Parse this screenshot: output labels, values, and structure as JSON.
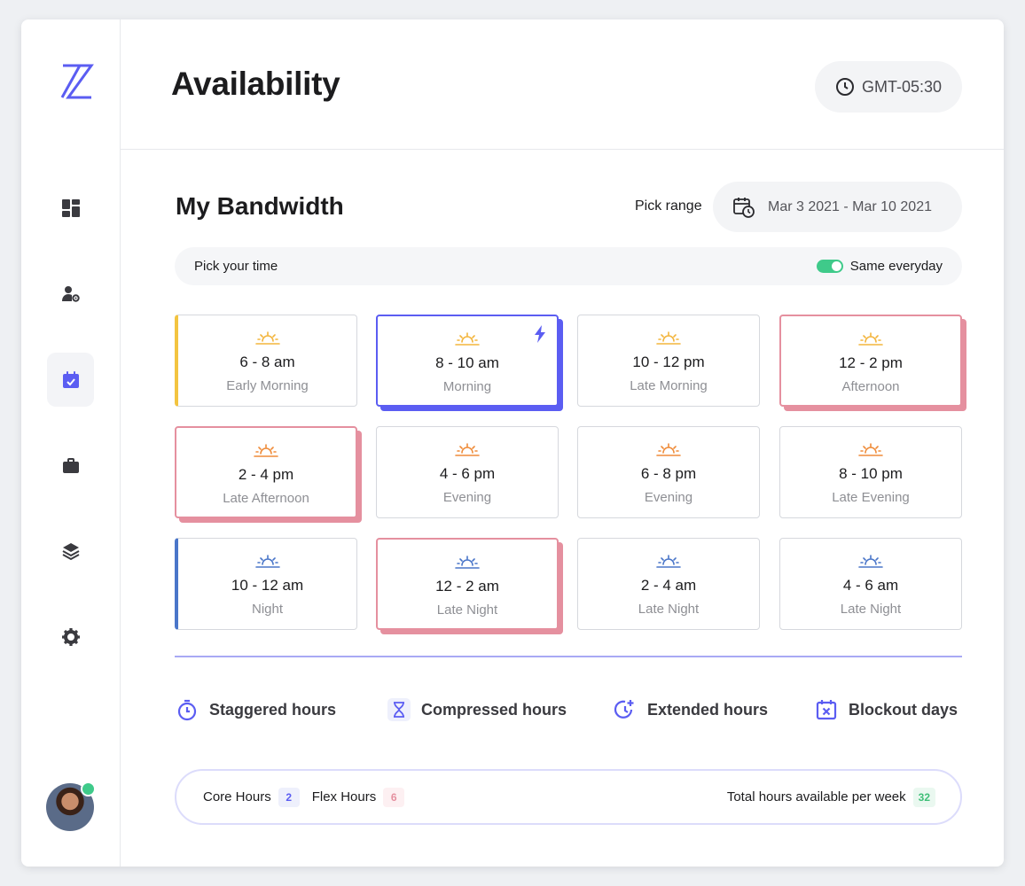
{
  "header": {
    "title": "Availability",
    "timezone": "GMT-05:30"
  },
  "bandwidth": {
    "title": "My Bandwidth",
    "range_label": "Pick range",
    "range_value": "Mar 3 2021 - Mar 10 2021",
    "time_bar_label": "Pick your time",
    "same_everyday_label": "Same everyday",
    "same_everyday_on": true
  },
  "slots": [
    {
      "time": "6 - 8 am",
      "label": "Early Morning",
      "icon": "sunrise-icon",
      "icon_color": "#f3b53d",
      "state": "bar-yellow"
    },
    {
      "time": "8 - 10 am",
      "label": "Morning",
      "icon": "sunrise-icon",
      "icon_color": "#f3b53d",
      "state": "selected-blue",
      "badge_icon": "bolt-icon"
    },
    {
      "time": "10 - 12 pm",
      "label": "Late Morning",
      "icon": "sunrise-icon",
      "icon_color": "#f3b53d",
      "state": "default"
    },
    {
      "time": "12 - 2 pm",
      "label": "Afternoon",
      "icon": "sunrise-icon",
      "icon_color": "#f3b53d",
      "state": "selected-pink"
    },
    {
      "time": "2 - 4 pm",
      "label": "Late Afternoon",
      "icon": "sunset-icon",
      "icon_color": "#ef8c3a",
      "state": "selected-pink"
    },
    {
      "time": "4 - 6 pm",
      "label": "Evening",
      "icon": "sunset-icon",
      "icon_color": "#ef8c3a",
      "state": "default"
    },
    {
      "time": "6 - 8 pm",
      "label": "Evening",
      "icon": "sunset-icon",
      "icon_color": "#ef8c3a",
      "state": "default"
    },
    {
      "time": "8 - 10 pm",
      "label": "Late Evening",
      "icon": "sunset-icon",
      "icon_color": "#ef8c3a",
      "state": "default"
    },
    {
      "time": "10 - 12 am",
      "label": "Night",
      "icon": "moon-horizon-icon",
      "icon_color": "#4a76c9",
      "state": "bar-blue"
    },
    {
      "time": "12 - 2 am",
      "label": "Late Night",
      "icon": "moon-horizon-icon",
      "icon_color": "#4a76c9",
      "state": "selected-pink"
    },
    {
      "time": "2 - 4 am",
      "label": "Late Night",
      "icon": "moon-horizon-icon",
      "icon_color": "#4a76c9",
      "state": "default"
    },
    {
      "time": "4 - 6 am",
      "label": "Late Night",
      "icon": "moon-horizon-icon",
      "icon_color": "#4a76c9",
      "state": "default"
    }
  ],
  "options": [
    {
      "label": "Staggered hours",
      "icon": "stopwatch-icon"
    },
    {
      "label": "Compressed hours",
      "icon": "hourglass-icon"
    },
    {
      "label": "Extended hours",
      "icon": "clock-plus-icon"
    },
    {
      "label": "Blockout days",
      "icon": "calendar-x-icon"
    }
  ],
  "summary": {
    "core_label": "Core Hours",
    "core_value": "2",
    "flex_label": "Flex Hours",
    "flex_value": "6",
    "total_label": "Total hours available per week",
    "total_value": "32"
  },
  "sidebar": {
    "items": [
      {
        "icon": "dashboard-icon"
      },
      {
        "icon": "user-settings-icon"
      },
      {
        "icon": "calendar-check-icon",
        "active": true
      },
      {
        "icon": "briefcase-icon"
      },
      {
        "icon": "layers-icon"
      },
      {
        "icon": "gear-icon"
      }
    ]
  },
  "colors": {
    "accent": "#5b5df2",
    "pink": "#e5909f",
    "green": "#3fca8a"
  }
}
